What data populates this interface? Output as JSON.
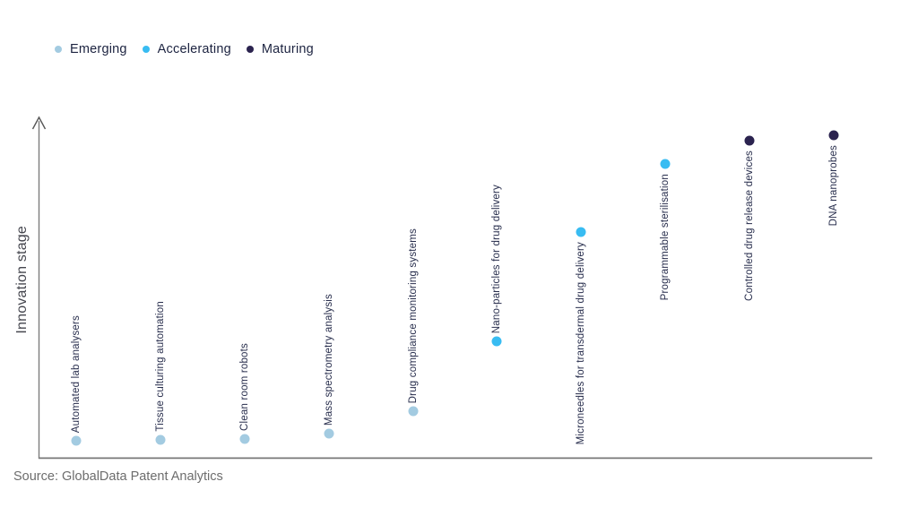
{
  "legend": {
    "items": [
      {
        "label": "Emerging",
        "color": "#a3cbe1"
      },
      {
        "label": "Accelerating",
        "color": "#38bcf2"
      },
      {
        "label": "Maturing",
        "color": "#2b234f"
      }
    ]
  },
  "chart_data": {
    "type": "scatter",
    "title": "",
    "xlabel": "",
    "ylabel": "Innovation stage",
    "grid": false,
    "legend_position": "top-left",
    "y_axis": {
      "min": 0,
      "max": 1,
      "ticks_visible": false,
      "arrow": true
    },
    "stage_colors": {
      "Emerging": "#a3cbe1",
      "Accelerating": "#38bcf2",
      "Maturing": "#2b234f"
    },
    "points": [
      {
        "label": "Automated lab analysers",
        "stage": "Emerging",
        "value": 0.052,
        "label_position": "above"
      },
      {
        "label": "Tissue culturing automation",
        "stage": "Emerging",
        "value": 0.055,
        "label_position": "above"
      },
      {
        "label": "Clean room robots",
        "stage": "Emerging",
        "value": 0.058,
        "label_position": "above"
      },
      {
        "label": "Mass spectrometry analysis",
        "stage": "Emerging",
        "value": 0.073,
        "label_position": "above"
      },
      {
        "label": "Drug compliance monitoring systems",
        "stage": "Emerging",
        "value": 0.139,
        "label_position": "above"
      },
      {
        "label": "Nano-particles for drug delivery",
        "stage": "Accelerating",
        "value": 0.343,
        "label_position": "above"
      },
      {
        "label": "Microneedles for transdermal drug delivery",
        "stage": "Accelerating",
        "value": 0.662,
        "label_position": "below"
      },
      {
        "label": "Programmable sterilisation",
        "stage": "Accelerating",
        "value": 0.861,
        "label_position": "below"
      },
      {
        "label": "Controlled drug release devices",
        "stage": "Maturing",
        "value": 0.929,
        "label_position": "below"
      },
      {
        "label": "DNA nanoprobes",
        "stage": "Maturing",
        "value": 0.945,
        "label_position": "below"
      }
    ]
  },
  "source": {
    "text": "Source: GlobalData Patent Analytics"
  }
}
